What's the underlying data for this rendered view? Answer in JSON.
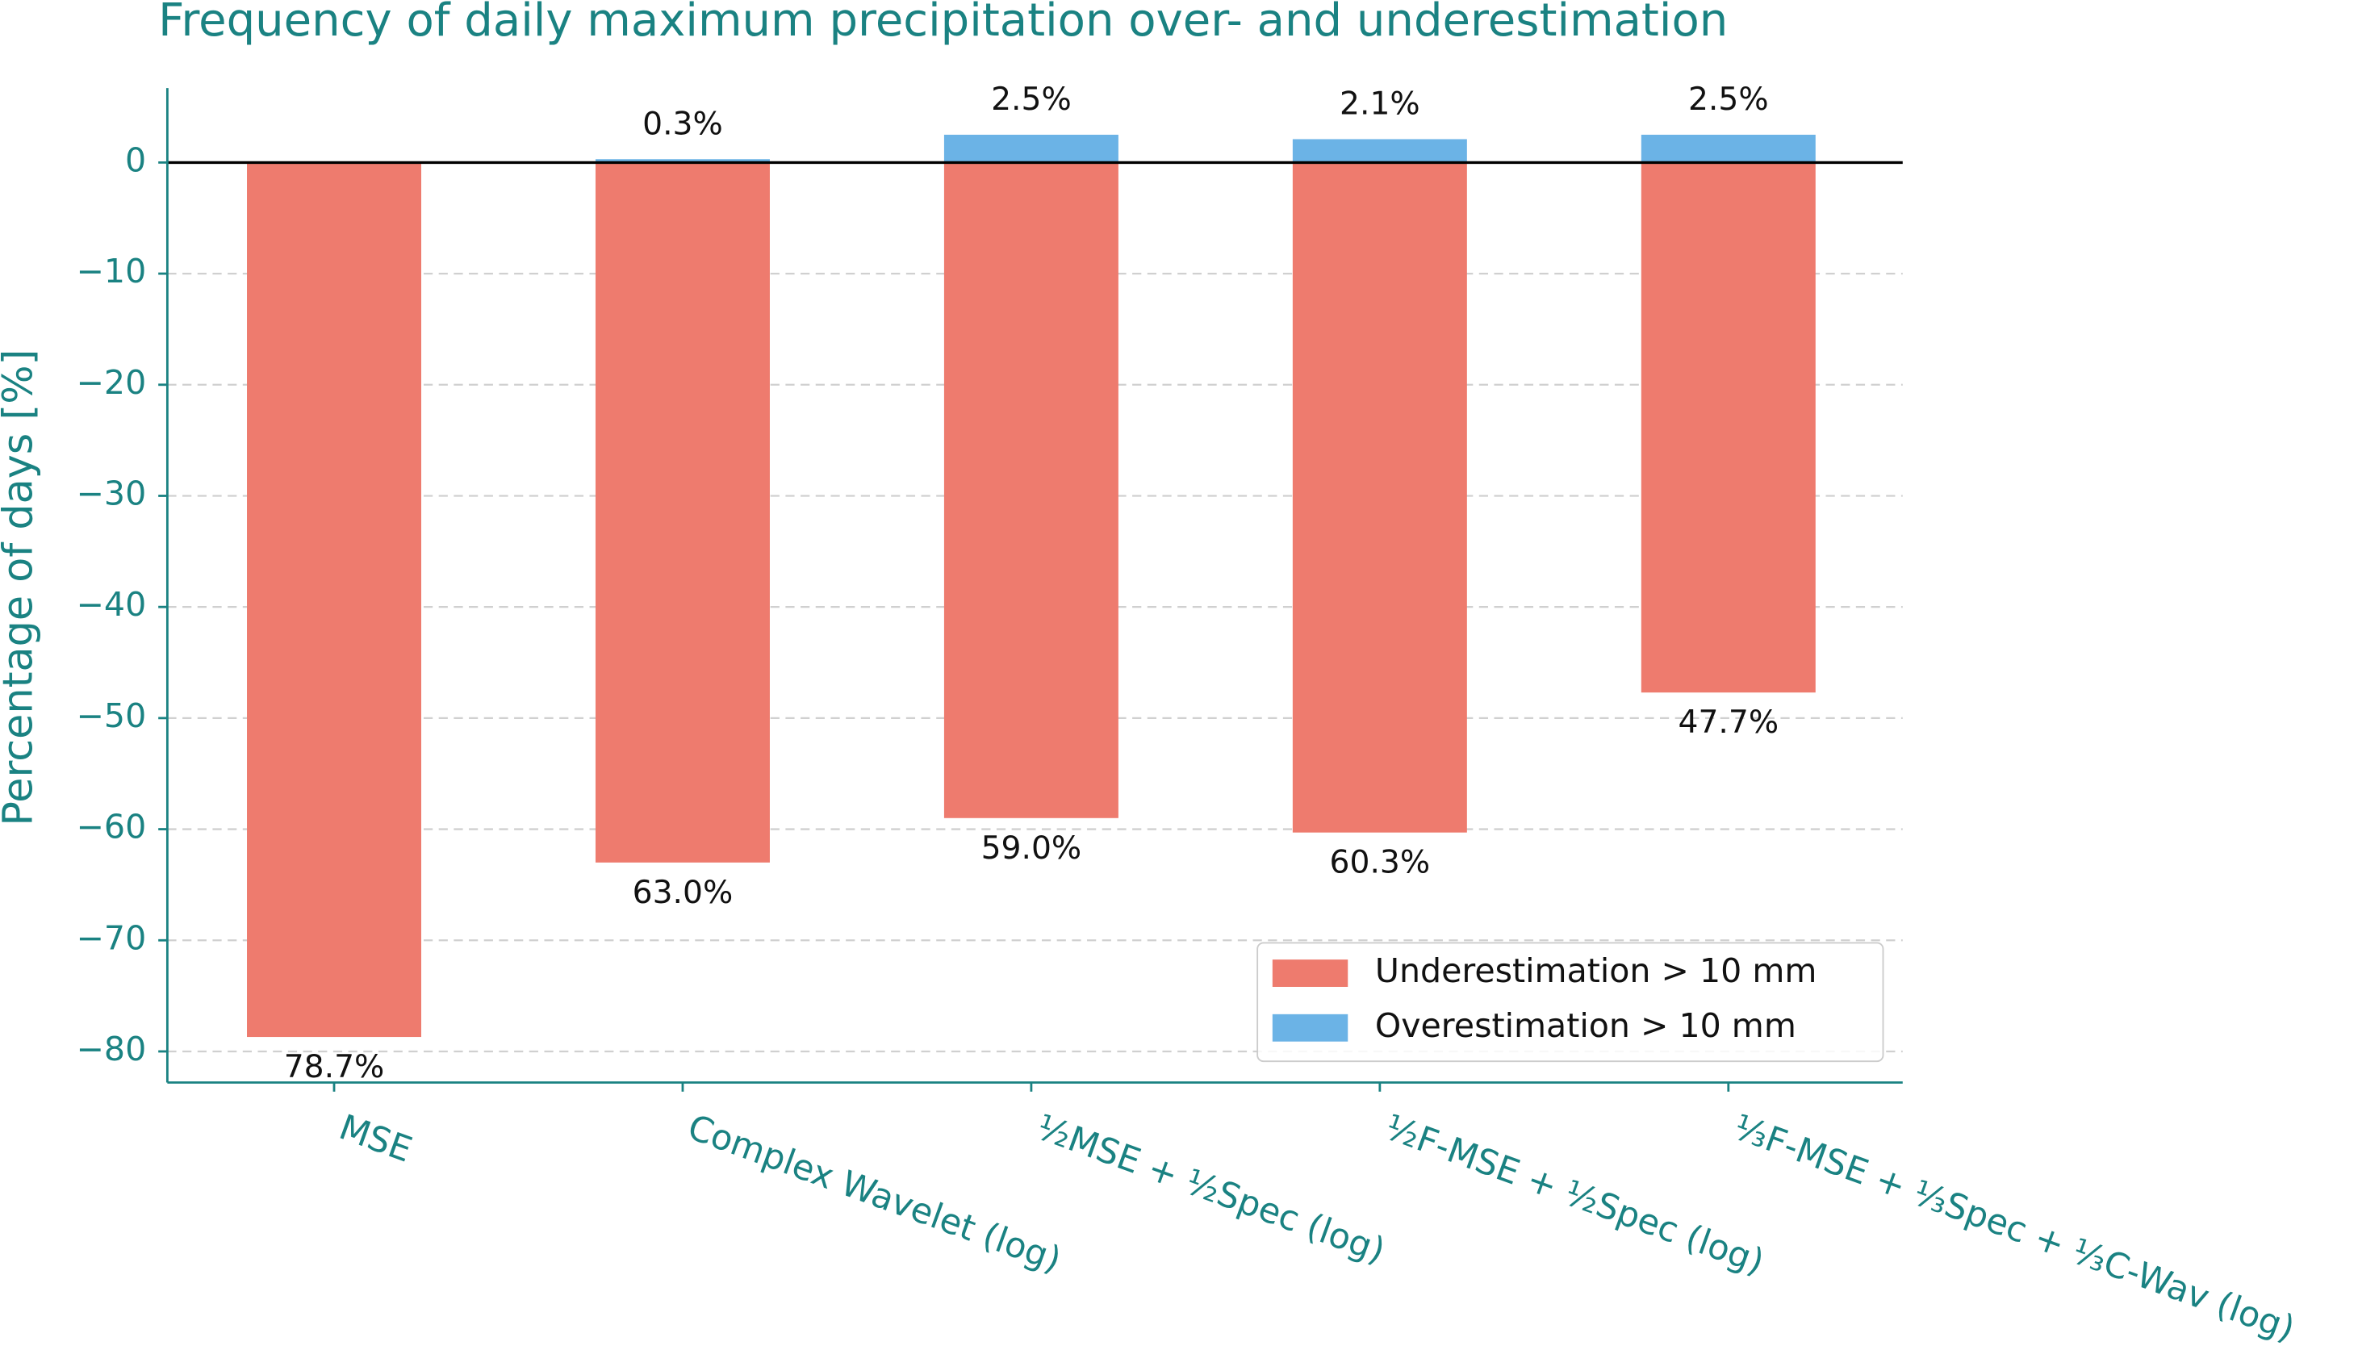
{
  "chart_data": {
    "type": "bar",
    "title": "Frequency of daily maximum precipitation over- and underestimation",
    "y_label": "Percentage of days [%]",
    "categories": [
      "MSE",
      "Complex Wavelet (log)",
      "½MSE + ½Spec (log)",
      "½F-MSE + ½Spec (log)",
      "⅓F-MSE + ⅓Spec + ⅓C-Wav (log)"
    ],
    "series": [
      {
        "name": "Underestimation > 10 mm",
        "color": "#ee7b6e",
        "values": [
          -78.7,
          -63.0,
          -59.0,
          -60.3,
          -47.7
        ],
        "value_labels": [
          "78.7%",
          "63.0%",
          "59.0%",
          "60.3%",
          "47.7%"
        ]
      },
      {
        "name": "Overestimation > 10 mm",
        "color": "#6bb3e6",
        "values": [
          null,
          0.3,
          2.5,
          2.1,
          2.5
        ],
        "value_labels": [
          null,
          "0.3%",
          "2.5%",
          "2.1%",
          "2.5%"
        ]
      }
    ],
    "ylim": [
      -82.8,
      6.7
    ],
    "yticks": [
      {
        "value": -80,
        "label": "−80"
      },
      {
        "value": -70,
        "label": "−70"
      },
      {
        "value": -60,
        "label": "−60"
      },
      {
        "value": -50,
        "label": "−50"
      },
      {
        "value": -40,
        "label": "−40"
      },
      {
        "value": -30,
        "label": "−30"
      },
      {
        "value": -20,
        "label": "−20"
      },
      {
        "value": -10,
        "label": "−10"
      },
      0
    ],
    "grid": true,
    "legend": "lower right"
  }
}
